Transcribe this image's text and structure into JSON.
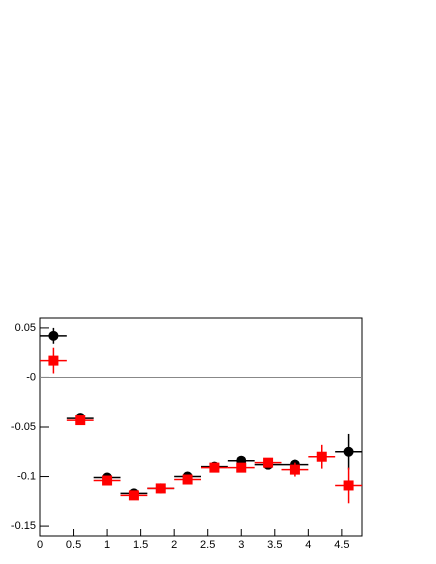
{
  "chart_data": {
    "type": "scatter",
    "x": [
      0.2,
      0.6,
      1.0,
      1.4,
      1.8,
      2.2,
      2.6,
      3.0,
      3.4,
      3.8,
      4.2,
      4.6
    ],
    "xerr": 0.2,
    "series": [
      {
        "name": null,
        "color": "#000000",
        "marker": "circle",
        "values": [
          0.042,
          -0.041,
          -0.101,
          -0.117,
          -0.112,
          -0.1,
          -0.09,
          -0.084,
          -0.088,
          -0.088,
          null,
          -0.075
        ],
        "errors": [
          0.008,
          0.002,
          0.003,
          0.003,
          0.003,
          0.003,
          0.003,
          0.003,
          0.003,
          0.005,
          null,
          0.018
        ]
      },
      {
        "name": null,
        "color": "#ff0000",
        "marker": "square",
        "values": [
          0.017,
          -0.043,
          -0.104,
          -0.119,
          -0.112,
          -0.103,
          -0.091,
          -0.091,
          -0.086,
          -0.093,
          -0.08,
          -0.109
        ],
        "errors": [
          0.013,
          0.002,
          0.003,
          0.003,
          0.003,
          0.003,
          0.003,
          0.003,
          0.003,
          0.007,
          0.012,
          0.018
        ]
      }
    ],
    "xlim": [
      0,
      4.8
    ],
    "ylim": [
      -0.16,
      0.06
    ],
    "xticks": [
      0,
      0.5,
      1,
      1.5,
      2,
      2.5,
      3,
      3.5,
      4,
      4.5
    ],
    "yticks": [
      0.05,
      {
        "value": 0,
        "label": "-0"
      },
      -0.05,
      -0.1,
      -0.15
    ],
    "reference_line": 0
  }
}
